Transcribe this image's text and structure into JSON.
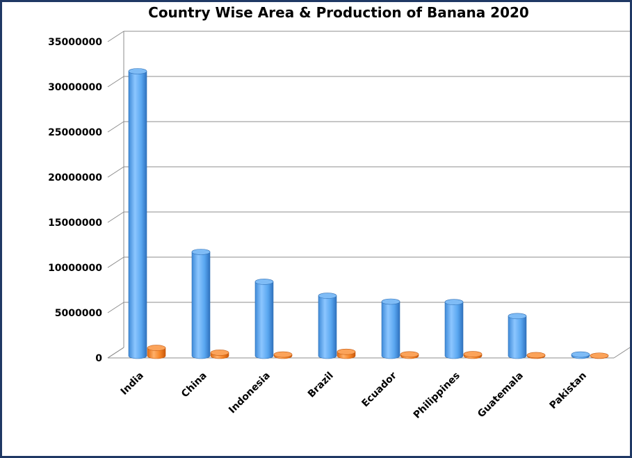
{
  "chart_data": {
    "type": "bar",
    "title": "Country Wise Area & Production of Banana 2020",
    "xlabel": "",
    "ylabel": "",
    "categories": [
      "India",
      "China",
      "Indonesia",
      "Brazil",
      "Ecuador",
      "Philippines",
      "Guatemala",
      "Pakistan"
    ],
    "series": [
      {
        "values": [
          31500000,
          11500000,
          8200000,
          6650000,
          6000000,
          5950000,
          4400000,
          150000
        ]
      },
      {
        "values": [
          880000,
          350000,
          150000,
          450000,
          170000,
          190000,
          80000,
          20000
        ]
      }
    ],
    "ylim": [
      0,
      35000000
    ],
    "yticks": [
      "0",
      "5000000",
      "10000000",
      "15000000",
      "20000000",
      "25000000",
      "30000000",
      "35000000"
    ],
    "grid": true,
    "legend": "none",
    "colors": {
      "series1": "#5aa7f0",
      "series2": "#f58426",
      "frame": "#1f3864"
    }
  }
}
